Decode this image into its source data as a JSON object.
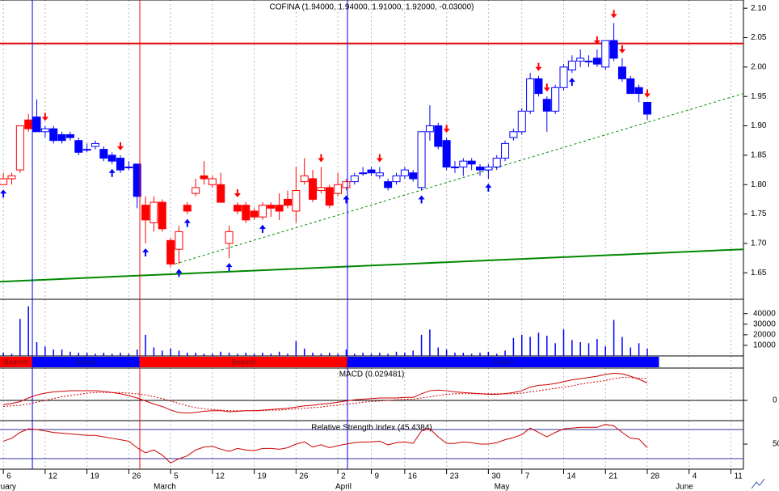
{
  "chart_data": [
    {
      "type": "candlestick",
      "title": "COFINA (1.94000, 1.94000, 1.91000, 1.92000, -0.03000)",
      "xlim": [
        -0.4,
        88.5
      ],
      "xticks": [
        {
          "value": 0,
          "label": "6"
        },
        {
          "value": 5,
          "label": "12"
        },
        {
          "value": 10,
          "label": "19"
        },
        {
          "value": 15,
          "label": "26"
        },
        {
          "value": 20,
          "label": "5"
        },
        {
          "value": 25,
          "label": "12"
        },
        {
          "value": 30,
          "label": "19"
        },
        {
          "value": 35,
          "label": "26"
        },
        {
          "value": 40,
          "label": "2"
        },
        {
          "value": 44,
          "label": "9"
        },
        {
          "value": 48,
          "label": "16"
        },
        {
          "value": 53,
          "label": "23"
        },
        {
          "value": 58,
          "label": "30"
        },
        {
          "value": 62,
          "label": "7"
        },
        {
          "value": 67,
          "label": "14"
        },
        {
          "value": 72,
          "label": "21"
        },
        {
          "value": 77,
          "label": "28"
        },
        {
          "value": 82,
          "label": "4"
        },
        {
          "value": 87,
          "label": "11"
        }
      ],
      "months": [
        {
          "value": -2.33,
          "label": "February"
        },
        {
          "value": 17.96,
          "label": "March"
        },
        {
          "value": 39.7,
          "label": "April"
        },
        {
          "value": 58.7,
          "label": "May"
        },
        {
          "value": 80.4,
          "label": "June"
        }
      ],
      "ylim": [
        1.605,
        2.114
      ],
      "yticks": [
        1.65,
        {
          "value": 1.7,
          "label": "1.70"
        },
        1.75,
        {
          "value": 1.8,
          "label": "1.80"
        },
        1.85,
        {
          "value": 1.9,
          "label": "1.90"
        },
        1.95,
        {
          "value": 2.0,
          "label": "2.00"
        },
        2.05,
        {
          "value": 2.1,
          "label": "2.10"
        }
      ],
      "open": [
        1.8,
        1.81,
        1.825,
        1.91,
        1.915,
        1.89,
        1.895,
        1.885,
        1.885,
        1.875,
        1.86,
        1.865,
        1.86,
        1.85,
        1.845,
        1.83,
        1.835,
        1.765,
        1.735,
        1.77,
        1.705,
        1.69,
        1.765,
        1.785,
        1.815,
        1.8,
        1.8,
        1.7,
        1.765,
        1.765,
        1.755,
        1.745,
        1.765,
        1.765,
        1.775,
        1.755,
        1.805,
        1.81,
        1.79,
        1.795,
        1.785,
        1.795,
        1.805,
        1.82,
        1.825,
        1.815,
        1.805,
        1.805,
        1.815,
        1.82,
        1.795,
        1.89,
        1.9,
        1.875,
        1.83,
        1.83,
        1.84,
        1.83,
        1.825,
        1.83,
        1.845,
        1.88,
        1.89,
        1.925,
        1.98,
        1.945,
        1.925,
        1.965,
        1.995,
        2.01,
        2.01,
        2.015,
        2.0,
        2.045,
        2.0,
        1.98,
        1.965,
        1.94
      ],
      "high": [
        1.82,
        1.82,
        1.9,
        1.92,
        1.945,
        1.9,
        1.9,
        1.89,
        1.89,
        1.88,
        1.87,
        1.875,
        1.865,
        1.855,
        1.85,
        1.84,
        1.835,
        1.78,
        1.78,
        1.775,
        1.71,
        1.73,
        1.77,
        1.81,
        1.84,
        1.815,
        1.82,
        1.73,
        1.77,
        1.77,
        1.76,
        1.77,
        1.77,
        1.785,
        1.79,
        1.83,
        1.845,
        1.825,
        1.83,
        1.8,
        1.82,
        1.81,
        1.82,
        1.83,
        1.83,
        1.83,
        1.81,
        1.82,
        1.83,
        1.825,
        1.89,
        1.935,
        1.905,
        1.88,
        1.84,
        1.845,
        1.845,
        1.835,
        1.835,
        1.85,
        1.875,
        1.895,
        1.93,
        1.99,
        1.985,
        1.95,
        1.97,
        2.005,
        2.02,
        2.03,
        2.02,
        2.03,
        2.045,
        2.075,
        2.015,
        1.985,
        1.97,
        1.94
      ],
      "low": [
        1.8,
        1.8,
        1.82,
        1.89,
        1.89,
        1.88,
        1.87,
        1.87,
        1.875,
        1.85,
        1.855,
        1.86,
        1.84,
        1.835,
        1.82,
        1.825,
        1.76,
        1.7,
        1.72,
        1.72,
        1.66,
        1.665,
        1.75,
        1.78,
        1.8,
        1.795,
        1.77,
        1.675,
        1.75,
        1.735,
        1.74,
        1.74,
        1.745,
        1.74,
        1.76,
        1.735,
        1.8,
        1.77,
        1.785,
        1.76,
        1.78,
        1.79,
        1.8,
        1.815,
        1.815,
        1.81,
        1.79,
        1.8,
        1.81,
        1.805,
        1.79,
        1.875,
        1.86,
        1.825,
        1.82,
        1.815,
        1.825,
        1.815,
        1.81,
        1.825,
        1.84,
        1.875,
        1.885,
        1.92,
        1.95,
        1.89,
        1.92,
        1.96,
        1.99,
        2.0,
        2.0,
        2.0,
        1.995,
        2.01,
        1.975,
        1.955,
        1.94,
        1.91
      ],
      "close": [
        1.81,
        1.815,
        1.9,
        1.895,
        1.89,
        1.895,
        1.875,
        1.875,
        1.88,
        1.855,
        1.86,
        1.87,
        1.845,
        1.84,
        1.825,
        1.83,
        1.78,
        1.74,
        1.77,
        1.725,
        1.665,
        1.72,
        1.755,
        1.795,
        1.81,
        1.81,
        1.77,
        1.72,
        1.755,
        1.74,
        1.745,
        1.765,
        1.76,
        1.755,
        1.765,
        1.79,
        1.815,
        1.775,
        1.795,
        1.765,
        1.8,
        1.805,
        1.815,
        1.82,
        1.82,
        1.82,
        1.795,
        1.815,
        1.825,
        1.81,
        1.89,
        1.9,
        1.865,
        1.83,
        1.83,
        1.84,
        1.835,
        1.825,
        1.83,
        1.845,
        1.87,
        1.89,
        1.925,
        1.98,
        1.955,
        1.925,
        1.965,
        2.0,
        2.01,
        2.015,
        2.01,
        2.005,
        2.045,
        2.015,
        1.98,
        1.955,
        1.955,
        1.92
      ],
      "up_arrows": [
        0,
        13,
        17,
        21,
        22,
        27,
        31,
        41,
        50,
        58,
        68
      ],
      "down_arrows": [
        5,
        14,
        28,
        38,
        45,
        53,
        64,
        65,
        71,
        73,
        74,
        77
      ],
      "up_color": "#0000ff",
      "down_color": "#ff0000",
      "hlines": [
        {
          "value": 2.04,
          "color": "#e00000"
        }
      ],
      "trendlines": [
        {
          "x": [
            -0.4,
            88.5
          ],
          "y": [
            1.635,
            1.69
          ],
          "color": "#008800",
          "dashed": false
        },
        {
          "x": [
            20.5,
            88.5
          ],
          "y": [
            1.665,
            1.955
          ],
          "color": "#008800",
          "dashed": true
        }
      ]
    },
    {
      "type": "bar",
      "values": [
        3000,
        2000,
        35000,
        47000,
        13000,
        9000,
        6000,
        6000,
        4000,
        3000,
        3000,
        2000,
        3000,
        2000,
        3000,
        2000,
        6000,
        20000,
        8000,
        5000,
        7000,
        5000,
        3000,
        3000,
        2000,
        2000,
        4000,
        3000,
        2000,
        3000,
        2000,
        3000,
        2000,
        4000,
        2000,
        14000,
        7000,
        3000,
        2000,
        3000,
        2000,
        6000,
        2000,
        3000,
        2000,
        3000,
        2000,
        4000,
        3000,
        5000,
        20000,
        25000,
        8000,
        6000,
        3000,
        3000,
        2000,
        3000,
        4000,
        2000,
        5000,
        17000,
        20000,
        18000,
        22000,
        19000,
        12000,
        25000,
        15000,
        13000,
        12000,
        16000,
        9000,
        34000,
        18000,
        8000,
        12000,
        7000
      ],
      "color": "#0000ff",
      "ylim": [
        0,
        52000
      ],
      "yticks": [
        10000,
        20000,
        30000,
        40000
      ]
    },
    {
      "type": "regime",
      "segments": [
        {
          "label": "Bearish",
          "start": -0.4,
          "end": 3.47,
          "color": "#ff0000"
        },
        {
          "label": "Bullish",
          "start": 3.47,
          "end": 16.32,
          "color": "#0000ff"
        },
        {
          "label": "Bearish",
          "start": 16.32,
          "end": 41.15,
          "color": "#ff0000"
        },
        {
          "label": "Bullish",
          "start": 41.15,
          "end": 78.4,
          "color": "#0000ff"
        }
      ]
    },
    {
      "type": "line",
      "title": "MACD (0.029481)",
      "ylim": [
        -0.0335,
        0.0536
      ],
      "yticks": [
        0
      ],
      "series": [
        {
          "values": [
            -0.007,
            -0.005,
            -0.002,
            0.004,
            0.009,
            0.012,
            0.014,
            0.015,
            0.016,
            0.016,
            0.016,
            0.016,
            0.015,
            0.013,
            0.011,
            0.008,
            0.004,
            -0.001,
            -0.006,
            -0.01,
            -0.016,
            -0.02,
            -0.021,
            -0.02,
            -0.018,
            -0.017,
            -0.017,
            -0.019,
            -0.018,
            -0.017,
            -0.017,
            -0.016,
            -0.015,
            -0.014,
            -0.013,
            -0.011,
            -0.009,
            -0.008,
            -0.006,
            -0.005,
            -0.003,
            -0.001,
            0.001,
            0.002,
            0.003,
            0.004,
            0.004,
            0.004,
            0.005,
            0.005,
            0.011,
            0.016,
            0.017,
            0.016,
            0.014,
            0.013,
            0.012,
            0.011,
            0.01,
            0.01,
            0.011,
            0.013,
            0.016,
            0.022,
            0.025,
            0.026,
            0.028,
            0.031,
            0.034,
            0.036,
            0.038,
            0.04,
            0.043,
            0.045,
            0.044,
            0.04,
            0.035,
            0.029
          ],
          "color": "#d00000",
          "dashed": false
        },
        {
          "values": [
            -0.01,
            -0.009,
            -0.008,
            -0.006,
            -0.003,
            0.0,
            0.003,
            0.006,
            0.008,
            0.01,
            0.012,
            0.013,
            0.013,
            0.013,
            0.013,
            0.012,
            0.011,
            0.009,
            0.006,
            0.003,
            -0.001,
            -0.005,
            -0.009,
            -0.012,
            -0.014,
            -0.015,
            -0.016,
            -0.017,
            -0.017,
            -0.017,
            -0.017,
            -0.017,
            -0.016,
            -0.016,
            -0.015,
            -0.014,
            -0.013,
            -0.012,
            -0.011,
            -0.009,
            -0.008,
            -0.006,
            -0.005,
            -0.003,
            -0.002,
            -0.001,
            0.0,
            0.001,
            0.002,
            0.002,
            0.004,
            0.006,
            0.008,
            0.01,
            0.011,
            0.011,
            0.011,
            0.011,
            0.011,
            0.011,
            0.011,
            0.011,
            0.012,
            0.014,
            0.016,
            0.018,
            0.02,
            0.022,
            0.024,
            0.027,
            0.029,
            0.031,
            0.033,
            0.036,
            0.038,
            0.038,
            0.037,
            0.036
          ],
          "color": "#d00000",
          "dashed": true
        }
      ]
    },
    {
      "type": "line",
      "title": "Relative Strength Index (45.4384)",
      "ylim": [
        15.6,
        80
      ],
      "yticks": [
        50
      ],
      "levels": [
        30,
        70
      ],
      "series": [
        {
          "values": [
            54,
            58,
            66,
            71,
            70,
            68,
            66,
            65,
            64,
            63,
            62,
            62,
            60,
            58,
            56,
            54,
            45,
            38,
            42,
            35,
            24,
            30,
            34,
            42,
            46,
            47,
            43,
            40,
            44,
            42,
            41,
            44,
            44,
            43,
            45,
            50,
            53,
            46,
            49,
            45,
            48,
            50,
            52,
            53,
            53,
            54,
            49,
            52,
            53,
            51,
            68,
            71,
            60,
            51,
            51,
            53,
            52,
            50,
            50,
            52,
            56,
            59,
            63,
            72,
            66,
            60,
            66,
            71,
            72,
            73,
            73,
            73,
            77,
            75,
            66,
            58,
            57,
            45
          ],
          "color": "#d00000",
          "dashed": false
        }
      ]
    }
  ]
}
